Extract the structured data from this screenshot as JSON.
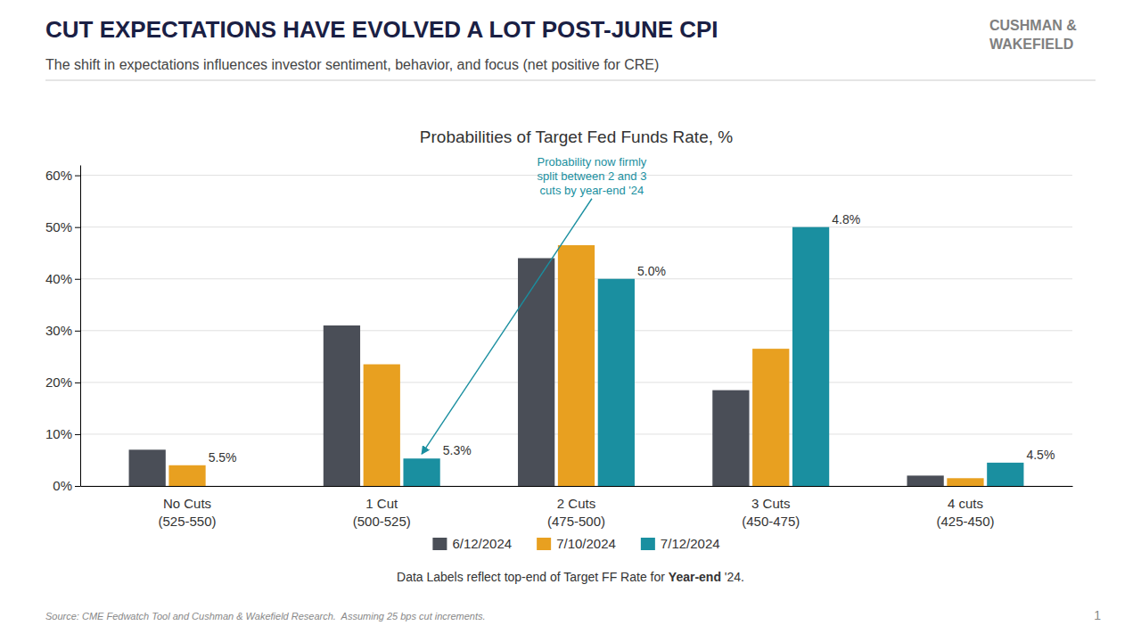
{
  "title": "CUT EXPECTATIONS HAVE EVOLVED A LOT POST-JUNE CPI",
  "subtitle": "The shift in expectations influences investor sentiment, behavior, and focus (net positive for CRE)",
  "logo": "CUSHMAN &\nWAKEFIELD",
  "footnote": [
    "Data Labels reflect top-end of Target FF Rate for ",
    "Year-end",
    " '24."
  ],
  "source": "Source: CME Fedwatch Tool and Cushman & Wakefield Research.  Assuming 25 bps cut increments.",
  "page_number": "1",
  "chart_data": {
    "type": "bar",
    "title": "Probabilities of Target Fed Funds Rate, %",
    "categories": [
      "No Cuts\n(525-550)",
      "1 Cut\n(500-525)",
      "2 Cuts\n(475-500)",
      "3 Cuts\n(450-475)",
      "4 cuts\n(425-450)"
    ],
    "series": [
      {
        "name": "6/12/2024",
        "color": "#4a4e57",
        "values": [
          0.07,
          0.31,
          0.44,
          0.185,
          0.02
        ]
      },
      {
        "name": "7/10/2024",
        "color": "#e8a020",
        "values": [
          0.04,
          0.235,
          0.465,
          0.265,
          0.015
        ]
      },
      {
        "name": "7/12/2024",
        "color": "#1a8fa0",
        "values": [
          0.0,
          0.053,
          0.4,
          0.5,
          0.045
        ]
      }
    ],
    "ylim": [
      0,
      0.62
    ],
    "yticks": [
      {
        "value": 0,
        "label": "0%"
      },
      {
        "value": 0.1,
        "label": "10%"
      },
      {
        "value": 0.2,
        "label": "20%"
      },
      {
        "value": 0.3,
        "label": "30%"
      },
      {
        "value": 0.4,
        "label": "40%"
      },
      {
        "value": 0.5,
        "label": "50%"
      },
      {
        "value": 0.6,
        "label": "60%"
      }
    ],
    "grid": true,
    "legend": "bottom",
    "annotations": [
      {
        "text": "5.5%",
        "series": "7/10/2024",
        "category": "No Cuts\n(525-550)"
      },
      {
        "text": "5.3%",
        "series": "7/12/2024",
        "category": "1 Cut\n(500-525)"
      },
      {
        "text": "5.0%",
        "series": "7/12/2024",
        "category": "2 Cuts\n(475-500)"
      },
      {
        "text": "4.8%",
        "series": "7/12/2024",
        "category": "3 Cuts\n(450-475)"
      },
      {
        "text": "4.5%",
        "series": "7/12/2024",
        "category": "4 cuts\n(425-450)"
      },
      {
        "text": "Probability now firmly\nsplit between 2 and 3\ncuts by year-end '24",
        "series": "7/12/2024",
        "category": "1 Cut\n(500-525)",
        "arrow": true
      }
    ]
  }
}
